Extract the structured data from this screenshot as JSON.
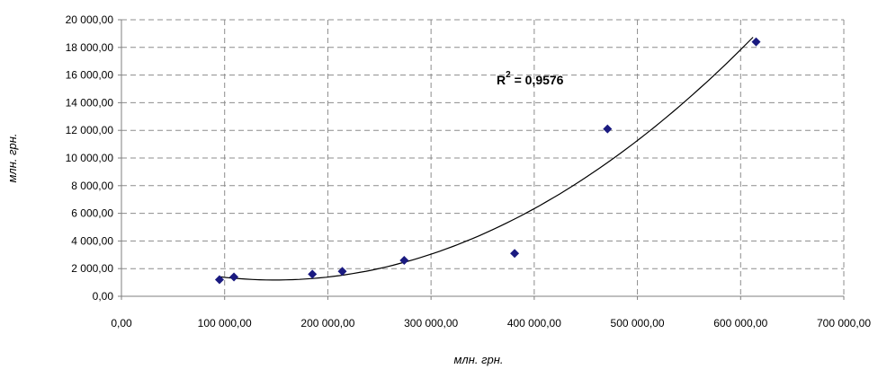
{
  "chart_data": {
    "type": "scatter",
    "xlabel": "млн. грн.",
    "ylabel": "млн. грн.",
    "xlim": [
      0,
      700000
    ],
    "ylim": [
      0,
      20000
    ],
    "x_ticks": [
      "0,00",
      "100 000,00",
      "200 000,00",
      "300 000,00",
      "400 000,00",
      "500 000,00",
      "600 000,00",
      "700 000,00"
    ],
    "y_ticks": [
      "0,00",
      "2 000,00",
      "4 000,00",
      "6 000,00",
      "8 000,00",
      "10 000,00",
      "12 000,00",
      "14 000,00",
      "16 000,00",
      "18 000,00",
      "20 000,00"
    ],
    "grid": true,
    "marker_color": "#1a1a80",
    "series": [
      {
        "points": [
          {
            "x": 95000,
            "y": 1200
          },
          {
            "x": 109000,
            "y": 1400
          },
          {
            "x": 185000,
            "y": 1600
          },
          {
            "x": 214000,
            "y": 1800
          },
          {
            "x": 274000,
            "y": 2600
          },
          {
            "x": 381000,
            "y": 3100
          },
          {
            "x": 471000,
            "y": 12100
          },
          {
            "x": 615000,
            "y": 18400
          }
        ]
      }
    ],
    "trendline": {
      "type": "polynomial",
      "order": 2,
      "x_range": [
        95000,
        612000
      ],
      "r2_label": "R² = 0,9576",
      "r2_text_main": "R",
      "r2_text_sup": "2",
      "r2_text_rest": " = 0,9576"
    }
  }
}
